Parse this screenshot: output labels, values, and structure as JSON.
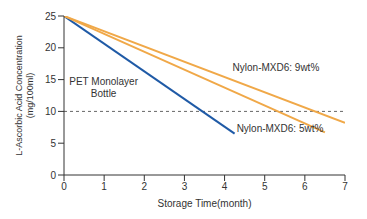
{
  "chart_data": {
    "type": "line",
    "xlabel": "Storage Time(month)",
    "ylabel": "L-Ascorbic Acid Concentration (mg/100ml)",
    "xlim": [
      0,
      7
    ],
    "xticks": [
      0,
      1,
      2,
      3,
      4,
      5,
      6,
      7
    ],
    "ylim": [
      0,
      25
    ],
    "yticks": [
      0,
      5,
      10,
      15,
      20,
      25
    ],
    "grid": false,
    "threshold": 10,
    "series": [
      {
        "name": "PET Monolayer Bottle",
        "color": "#1f5aa6",
        "x": [
          0,
          4.25
        ],
        "values": [
          25,
          6.5
        ]
      },
      {
        "name": "Nylon-MXD6: 9wt%",
        "color": "#f0a848",
        "x": [
          0,
          7
        ],
        "values": [
          25,
          8.2
        ]
      },
      {
        "name": "Nylon-MXD6: 5wt%",
        "color": "#f0a848",
        "x": [
          0,
          6.5
        ],
        "values": [
          25,
          6.7
        ]
      }
    ]
  }
}
